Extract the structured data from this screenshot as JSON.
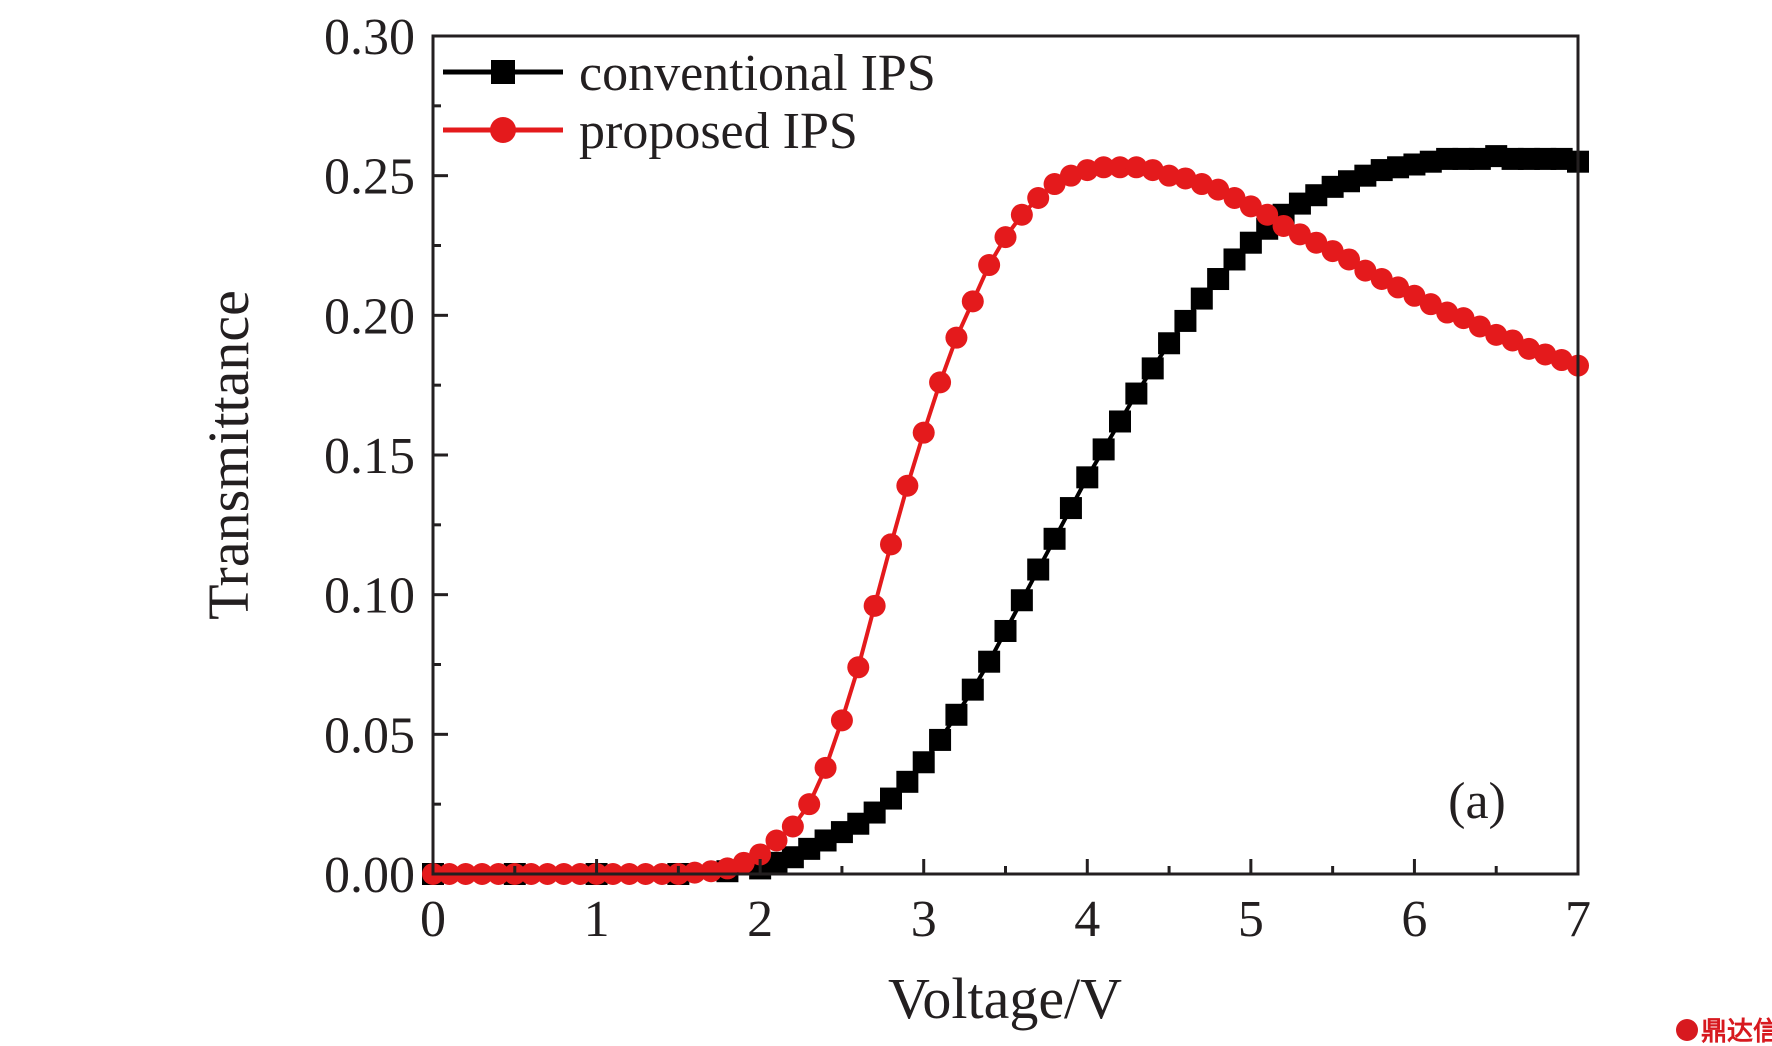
{
  "chart_data": {
    "type": "line",
    "xlabel": "Voltage/V",
    "ylabel": "Transmittance",
    "xlim": [
      0,
      7
    ],
    "ylim": [
      0,
      0.3
    ],
    "x_ticks": [
      "0",
      "1",
      "2",
      "3",
      "4",
      "5",
      "6",
      "7"
    ],
    "y_ticks": [
      "0.00",
      "0.05",
      "0.10",
      "0.15",
      "0.20",
      "0.25",
      "0.30"
    ],
    "grid": false,
    "legend_position": "top-left",
    "annotation": "(a)",
    "series": [
      {
        "name": "conventional IPS",
        "color": "#000000",
        "marker": "square",
        "x": [
          0,
          0.5,
          1,
          1.5,
          1.8,
          2,
          2.1,
          2.2,
          2.3,
          2.4,
          2.5,
          2.6,
          2.7,
          2.8,
          2.9,
          3,
          3.1,
          3.2,
          3.3,
          3.4,
          3.5,
          3.6,
          3.7,
          3.8,
          3.9,
          4,
          4.1,
          4.2,
          4.3,
          4.4,
          4.5,
          4.6,
          4.7,
          4.8,
          4.9,
          5,
          5.1,
          5.2,
          5.3,
          5.4,
          5.5,
          5.6,
          5.7,
          5.8,
          5.9,
          6,
          6.1,
          6.2,
          6.3,
          6.4,
          6.5,
          6.6,
          6.7,
          6.8,
          6.9,
          7
        ],
        "y": [
          0,
          0,
          0,
          0,
          0.001,
          0.002,
          0.004,
          0.006,
          0.009,
          0.012,
          0.015,
          0.018,
          0.022,
          0.027,
          0.033,
          0.04,
          0.048,
          0.057,
          0.066,
          0.076,
          0.087,
          0.098,
          0.109,
          0.12,
          0.131,
          0.142,
          0.152,
          0.162,
          0.172,
          0.181,
          0.19,
          0.198,
          0.206,
          0.213,
          0.22,
          0.226,
          0.231,
          0.236,
          0.24,
          0.243,
          0.246,
          0.248,
          0.25,
          0.252,
          0.253,
          0.254,
          0.255,
          0.256,
          0.256,
          0.256,
          0.257,
          0.256,
          0.256,
          0.256,
          0.256,
          0.255
        ]
      },
      {
        "name": "proposed IPS",
        "color": "#e41a1c",
        "marker": "circle",
        "x": [
          0,
          0.1,
          0.2,
          0.3,
          0.4,
          0.5,
          0.6,
          0.7,
          0.8,
          0.9,
          1,
          1.1,
          1.2,
          1.3,
          1.4,
          1.5,
          1.6,
          1.7,
          1.8,
          1.9,
          2,
          2.1,
          2.2,
          2.3,
          2.4,
          2.5,
          2.6,
          2.7,
          2.8,
          2.9,
          3,
          3.1,
          3.2,
          3.3,
          3.4,
          3.5,
          3.6,
          3.7,
          3.8,
          3.9,
          4,
          4.1,
          4.2,
          4.3,
          4.4,
          4.5,
          4.6,
          4.7,
          4.8,
          4.9,
          5,
          5.1,
          5.2,
          5.3,
          5.4,
          5.5,
          5.6,
          5.7,
          5.8,
          5.9,
          6,
          6.1,
          6.2,
          6.3,
          6.4,
          6.5,
          6.6,
          6.7,
          6.8,
          6.9,
          7
        ],
        "y": [
          0,
          0,
          0,
          0,
          0,
          0,
          0,
          0,
          0,
          0,
          0,
          0,
          0,
          0,
          0,
          0,
          0.0005,
          0.001,
          0.002,
          0.004,
          0.007,
          0.012,
          0.017,
          0.025,
          0.038,
          0.055,
          0.074,
          0.096,
          0.118,
          0.139,
          0.158,
          0.176,
          0.192,
          0.205,
          0.218,
          0.228,
          0.236,
          0.242,
          0.247,
          0.25,
          0.252,
          0.253,
          0.253,
          0.253,
          0.252,
          0.25,
          0.249,
          0.247,
          0.245,
          0.242,
          0.239,
          0.236,
          0.232,
          0.229,
          0.226,
          0.223,
          0.22,
          0.216,
          0.213,
          0.21,
          0.207,
          0.204,
          0.201,
          0.199,
          0.196,
          0.193,
          0.191,
          0.188,
          0.186,
          0.184,
          0.182
        ]
      }
    ]
  },
  "watermark": {
    "text": "鼎达信",
    "color": "#d7191f"
  }
}
